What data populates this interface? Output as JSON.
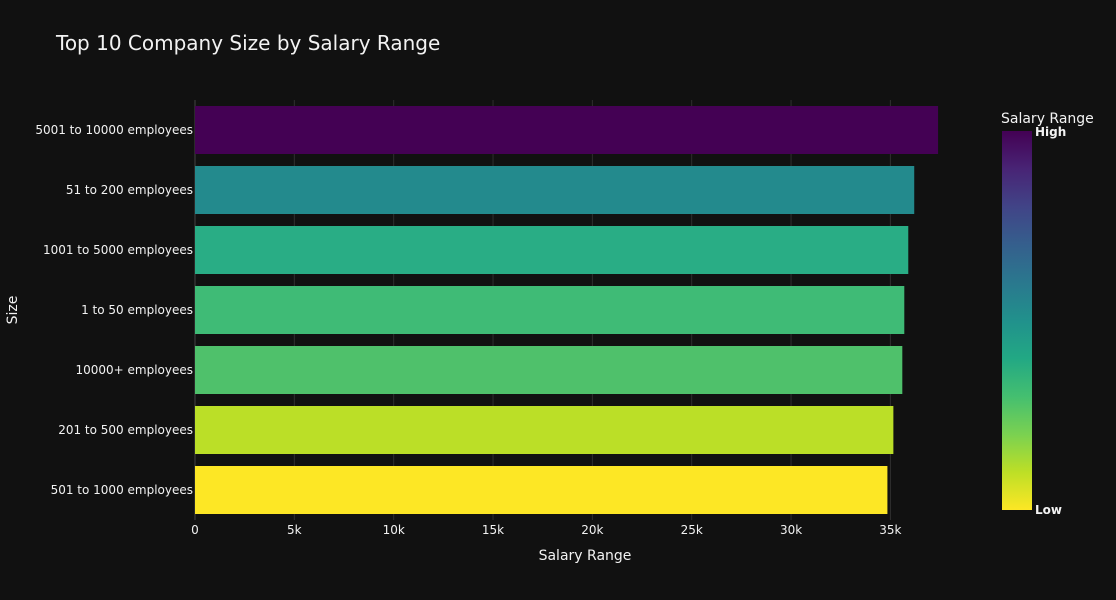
{
  "chart_data": {
    "type": "bar",
    "orientation": "horizontal",
    "title": "Top 10 Company Size by Salary Range",
    "xlabel": "Salary Range",
    "ylabel": "Size",
    "xlim": [
      0,
      38000
    ],
    "x_ticks": [
      0,
      5000,
      10000,
      15000,
      20000,
      25000,
      30000,
      35000
    ],
    "x_tick_labels": [
      "0",
      "5k",
      "10k",
      "15k",
      "20k",
      "25k",
      "30k",
      "35k"
    ],
    "categories": [
      "5001 to 10000 employees",
      "51 to 200 employees",
      "1001 to 5000 employees",
      "1 to 50 employees",
      "10000+ employees",
      "201 to 500 employees",
      "501 to 1000 employees"
    ],
    "values": [
      37400,
      36200,
      35900,
      35700,
      35600,
      35150,
      34850
    ],
    "bar_colors": [
      "#440154",
      "#238a8d",
      "#29ad85",
      "#3fbb76",
      "#4fc16b",
      "#bbdf27",
      "#fde725"
    ],
    "grid": true,
    "legend": {
      "type": "colorbar",
      "title": "Salary Range",
      "high_label": "High",
      "low_label": "Low",
      "placement": "right",
      "colorscale": [
        "#440154",
        "#482475",
        "#414487",
        "#355f8d",
        "#2a788e",
        "#21918c",
        "#22a884",
        "#44bf70",
        "#7ad151",
        "#bddf26",
        "#fde725"
      ]
    }
  }
}
